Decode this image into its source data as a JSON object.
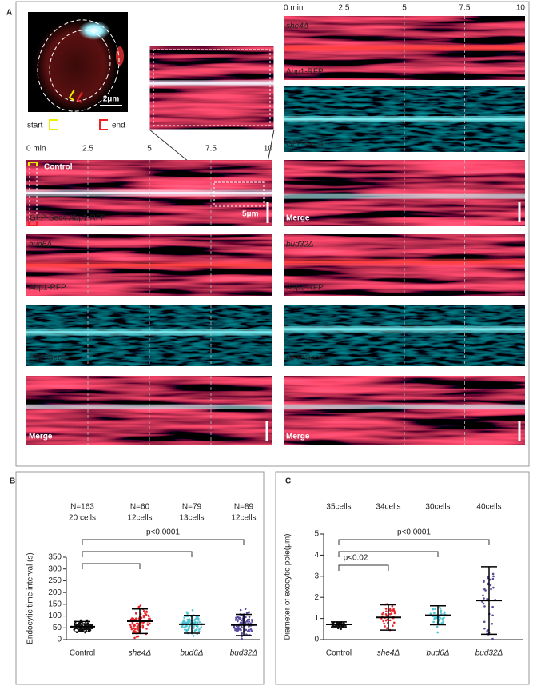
{
  "panel_a": {
    "label": "A",
    "time_ticks": [
      "0 min",
      "2.5",
      "5",
      "7.5",
      "10"
    ],
    "cell": {
      "scale": "2μm",
      "start": "start",
      "end": "end"
    },
    "control": {
      "title": "Control",
      "channels": [
        "GFP-Sec4",
        "Abp1-RFP"
      ],
      "scale": "5μm"
    },
    "mutants": [
      {
        "name": "bud6Δ",
        "channels": [
          "Abp1-RFP",
          "GFP-Sec4",
          "Merge"
        ]
      },
      {
        "name": "she4Δ",
        "channels": [
          "Abp1-RFP",
          "GFP-Sec4",
          "Merge"
        ]
      },
      {
        "name": "bud32Δ",
        "channels": [
          "Abp1-RFP",
          "GFP-Sec4",
          "Merge"
        ]
      }
    ]
  },
  "chart_data": [
    {
      "type": "dot",
      "label": "B",
      "ylabel": "Endocytic time interval (s)",
      "categories": [
        "Control",
        "she4Δ",
        "bud6Δ",
        "bud32Δ"
      ],
      "category_italic": [
        false,
        true,
        true,
        true
      ],
      "colors": [
        "#111111",
        "#e8262c",
        "#4ec4d4",
        "#5a4aa0"
      ],
      "values": [
        55,
        78,
        65,
        62
      ],
      "errors": [
        22,
        52,
        38,
        45
      ],
      "counts": [
        "N=163",
        "N=60",
        "N=79",
        "N=89"
      ],
      "cells": [
        "20 cells",
        "12cells",
        "13cells",
        "12cells"
      ],
      "p_values": [
        "p<0.0001"
      ],
      "ylim": [
        0,
        350
      ],
      "yticks": [
        0,
        50,
        100,
        150,
        200,
        250,
        300,
        350
      ]
    },
    {
      "type": "dot",
      "label": "C",
      "ylabel": "Diameter of exocytic pole(μm)",
      "categories": [
        "Control",
        "she4Δ",
        "bud6Δ",
        "bud32Δ"
      ],
      "category_italic": [
        false,
        true,
        true,
        true
      ],
      "colors": [
        "#111111",
        "#e8262c",
        "#4ec4d4",
        "#5a4aa0"
      ],
      "values": [
        0.72,
        1.05,
        1.15,
        1.85
      ],
      "errors": [
        0.12,
        0.6,
        0.45,
        1.6
      ],
      "cells": [
        "35cells",
        "34cells",
        "30cells",
        "40cells"
      ],
      "p_values": [
        "p<0.02",
        "p<0.0001"
      ],
      "ylim": [
        0,
        5
      ],
      "yticks": [
        0,
        1,
        2,
        3,
        4,
        5
      ]
    }
  ]
}
